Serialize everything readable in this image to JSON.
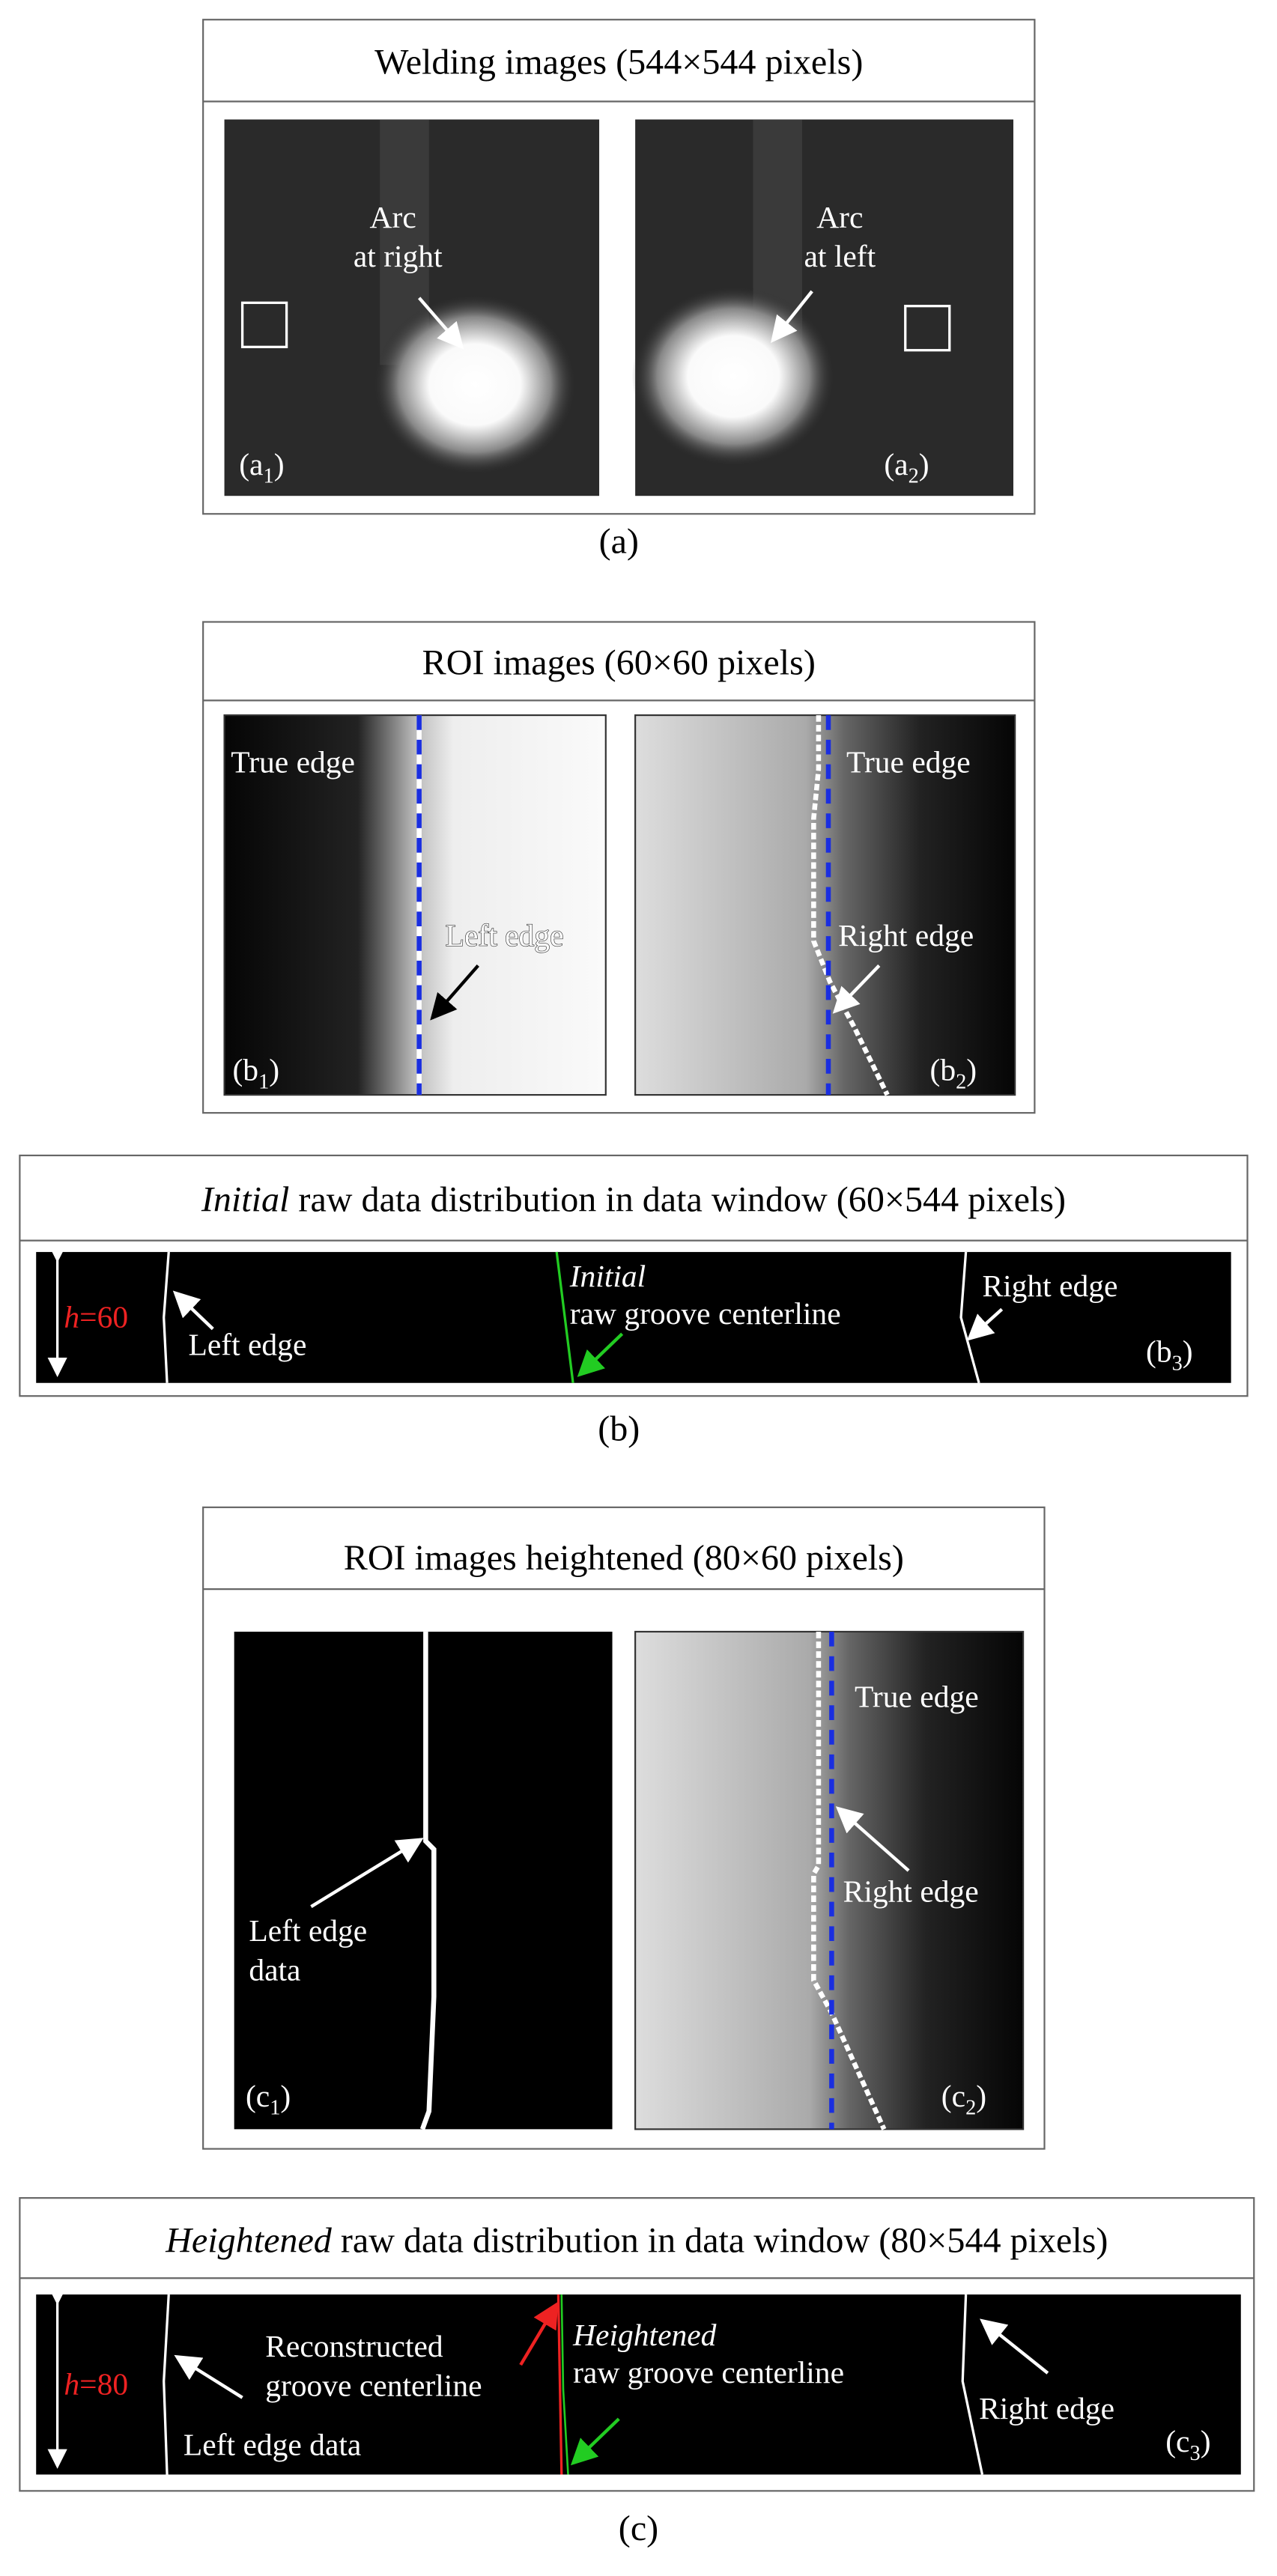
{
  "panel_a": {
    "title": "Welding images (544×544 pixels)",
    "images": [
      {
        "annotation": [
          "Arc",
          "at right"
        ],
        "label": [
          "(a",
          "1",
          ")"
        ]
      },
      {
        "annotation": [
          "Arc",
          "at left"
        ],
        "label": [
          "(a",
          "2",
          ")"
        ]
      }
    ],
    "caption": "(a)"
  },
  "panel_b": {
    "title": "ROI images (60×60 pixels)",
    "images": [
      {
        "annotations": [
          "True edge",
          "Left edge"
        ],
        "label": [
          "(b",
          "1",
          ")"
        ]
      },
      {
        "annotations": [
          "True edge",
          "Right edge"
        ],
        "label": [
          "(b",
          "2",
          ")"
        ]
      }
    ],
    "window": {
      "title": [
        "Initial",
        " raw data distribution in data window (60×544 pixels)"
      ],
      "height_label": [
        "h",
        "=60"
      ],
      "left": "Left edge",
      "center": [
        "Initial",
        "raw groove centerline"
      ],
      "right": "Right edge",
      "label": [
        "(b",
        "3",
        ")"
      ]
    },
    "caption": "(b)"
  },
  "panel_c": {
    "title": "ROI images heightened (80×60 pixels)",
    "images": [
      {
        "annotations": [
          "Left edge",
          "data"
        ],
        "label": [
          "(c",
          "1",
          ")"
        ]
      },
      {
        "annotations": [
          "True edge",
          "Right edge"
        ],
        "label": [
          "(c",
          "2",
          ")"
        ]
      }
    ],
    "window": {
      "title": [
        "Heightened",
        " raw data distribution in data window (80×544 pixels)"
      ],
      "height_label": [
        "h",
        "=80"
      ],
      "left": "Left edge data",
      "reconstructed": [
        "Reconstructed",
        "groove centerline"
      ],
      "center": [
        "Heightened",
        "raw groove centerline"
      ],
      "right": "Right edge",
      "label": [
        "(c",
        "3",
        ")"
      ]
    },
    "caption": "(c)"
  }
}
